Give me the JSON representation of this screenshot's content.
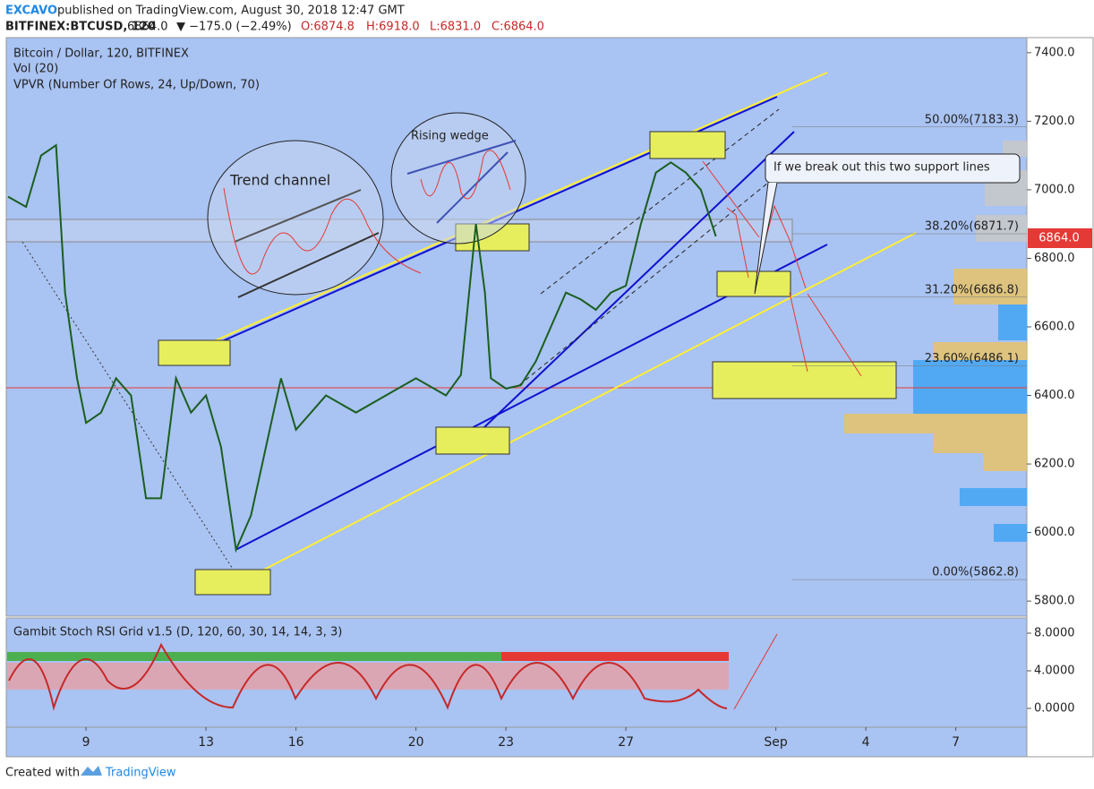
{
  "header": {
    "author": "EXCAVO",
    "published": "published on TradingView.com, August 30, 2018 12:47 GMT",
    "symbol": "BITFINEX:BTCUSD, 120",
    "last": "6864.0",
    "change": "▼ −175.0 (−2.49%)",
    "open": "O:6874.8",
    "high": "H:6918.0",
    "low": "L:6831.0",
    "close": "C:6864.0"
  },
  "legend": [
    "Bitcoin / Dollar, 120, BITFINEX",
    "Vol (20)",
    "VPVR (Number Of Rows, 24, Up/Down, 70)"
  ],
  "annotations": {
    "trend_channel": "Trend channel",
    "rising_wedge": "Rising wedge",
    "callout": "If we break out this two support lines"
  },
  "price_tag": "6864.0",
  "footer": {
    "created": "Created with",
    "brand": "TradingView"
  },
  "chart_data": {
    "type": "line",
    "color": "#1b5e20",
    "x": [
      6.4,
      7,
      7.5,
      8,
      8.3,
      8.7,
      9,
      9.5,
      10,
      10.5,
      11,
      11.5,
      12,
      12.5,
      13,
      13.5,
      14,
      14.5,
      15,
      15.5,
      16,
      17,
      18,
      19,
      20,
      21,
      21.5,
      22,
      22.3,
      22.5,
      23,
      23.5,
      24,
      24.5,
      25,
      25.5,
      26,
      26.5,
      27,
      27.5,
      28,
      28.5,
      29,
      29.5,
      30
    ],
    "values": [
      6980,
      6950,
      7100,
      7130,
      6700,
      6450,
      6320,
      6350,
      6450,
      6400,
      6100,
      6100,
      6450,
      6350,
      6400,
      6250,
      5950,
      6050,
      6250,
      6450,
      6300,
      6400,
      6350,
      6400,
      6450,
      6400,
      6460,
      6900,
      6700,
      6450,
      6420,
      6430,
      6500,
      6600,
      6700,
      6680,
      6650,
      6700,
      6720,
      6900,
      7050,
      7080,
      7050,
      7000,
      6864
    ],
    "xlim": [
      6.34,
      40.37
    ],
    "ylim": [
      5756,
      7444
    ],
    "xticks": [
      9,
      13,
      16,
      20,
      23,
      27,
      {
        "value": 32,
        "label": "Sep"
      },
      {
        "value": 35,
        "label": "4"
      },
      {
        "value": 38,
        "label": "7"
      }
    ],
    "yticks": [
      {
        "value": 7400,
        "label": "7400.0"
      },
      {
        "value": 7200,
        "label": "7200.0"
      },
      {
        "value": 7000,
        "label": "7000.0"
      },
      {
        "value": 6800,
        "label": "6800.0"
      },
      {
        "value": 6600,
        "label": "6600.0"
      },
      {
        "value": 6400,
        "label": "6400.0"
      },
      {
        "value": 6200,
        "label": "6200.0"
      },
      {
        "value": 6000,
        "label": "6000.0"
      },
      {
        "value": 5800,
        "label": "5800.0"
      }
    ],
    "fib_levels": [
      {
        "value": 7183.3,
        "label": "50.00%(7183.3)"
      },
      {
        "value": 6871.7,
        "label": "38.20%(6871.7)"
      },
      {
        "value": 6686.8,
        "label": "31.20%(6686.8)"
      },
      {
        "value": 6486.1,
        "label": "23.60%(6486.1)"
      },
      {
        "value": 5862.8,
        "label": "0.00%(5862.8)"
      }
    ],
    "oscillator": {
      "title": "Gambit Stoch RSI Grid v1.5 (D, 120, 60, 30, 14, 14, 3, 3)",
      "ylim": [
        -2,
        9.62
      ],
      "yticks": [
        {
          "value": 8,
          "label": "8.0000"
        },
        {
          "value": 4,
          "label": "4.0000"
        },
        {
          "value": 0,
          "label": "0.0000"
        }
      ]
    }
  }
}
